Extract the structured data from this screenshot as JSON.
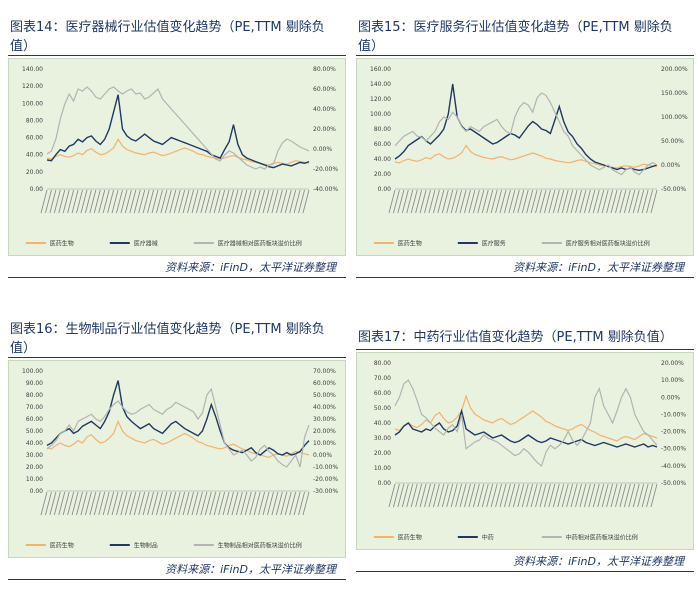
{
  "chart_data": [
    {
      "type": "line",
      "title": "图表14：医疗器械行业估值变化趋势（PE,TTM 剔除负值）",
      "source": "资料来源：iFinD，太平洋证券整理",
      "yticks_left": [
        "140.00",
        "120.00",
        "100.00",
        "80.00",
        "60.00",
        "40.00",
        "20.00",
        "0.00"
      ],
      "yticks_right": [
        "80.00%",
        "60.00%",
        "40.00%",
        "20.00%",
        "0.00%",
        "-20.00%",
        "-40.00%"
      ],
      "ylim": [
        0,
        140
      ],
      "y2lim": [
        -40,
        80
      ],
      "series": [
        {
          "name": "医药生物",
          "color": "#f4b26b",
          "axis": "left",
          "values": [
            36,
            35,
            38,
            40,
            38,
            37,
            39,
            42,
            40,
            45,
            47,
            43,
            40,
            41,
            44,
            48,
            58,
            50,
            46,
            44,
            42,
            41,
            40,
            42,
            43,
            41,
            39,
            40,
            42,
            44,
            46,
            48,
            46,
            44,
            41,
            40,
            38,
            37,
            36,
            35,
            36,
            38,
            39,
            37,
            35,
            34,
            32,
            31,
            30,
            29,
            28,
            30,
            31,
            30,
            29,
            31,
            33,
            32,
            31,
            30
          ]
        },
        {
          "name": "医疗器械",
          "color": "#1f3864",
          "axis": "left",
          "values": [
            34,
            33,
            40,
            46,
            44,
            50,
            52,
            58,
            55,
            60,
            62,
            56,
            52,
            58,
            70,
            90,
            110,
            70,
            62,
            58,
            56,
            60,
            64,
            60,
            56,
            54,
            52,
            56,
            60,
            58,
            56,
            54,
            52,
            50,
            48,
            46,
            44,
            40,
            38,
            36,
            46,
            55,
            75,
            52,
            40,
            36,
            34,
            32,
            30,
            28,
            26,
            25,
            27,
            29,
            28,
            27,
            29,
            31,
            30,
            32
          ]
        },
        {
          "name": "医疗器械相对医药板块溢价比例",
          "color": "#b3b3b3",
          "axis": "right",
          "values": [
            -5,
            -2,
            10,
            30,
            45,
            55,
            48,
            60,
            58,
            62,
            58,
            52,
            50,
            55,
            60,
            62,
            58,
            55,
            58,
            60,
            55,
            56,
            50,
            52,
            56,
            60,
            50,
            45,
            40,
            35,
            30,
            25,
            20,
            15,
            10,
            5,
            0,
            -5,
            -10,
            -12,
            -6,
            -2,
            -4,
            -8,
            -12,
            -16,
            -18,
            -20,
            -18,
            -20,
            -16,
            -15,
            -2,
            6,
            10,
            8,
            5,
            2,
            0,
            -2
          ]
        }
      ]
    },
    {
      "type": "line",
      "title": "图表15：医疗服务行业估值变化趋势（PE,TTM 剔除负值）",
      "source": "资料来源：iFinD，太平洋证券整理",
      "yticks_left": [
        "160.00",
        "140.00",
        "120.00",
        "100.00",
        "80.00",
        "60.00",
        "40.00",
        "20.00",
        "0.00"
      ],
      "yticks_right": [
        "200.00%",
        "150.00%",
        "100.00%",
        "50.00%",
        "0.00%",
        "-50.00%"
      ],
      "ylim": [
        0,
        160
      ],
      "y2lim": [
        -50,
        200
      ],
      "series": [
        {
          "name": "医药生物",
          "color": "#f4b26b",
          "axis": "left",
          "values": [
            36,
            35,
            38,
            40,
            38,
            37,
            39,
            42,
            40,
            45,
            47,
            43,
            40,
            41,
            44,
            48,
            58,
            50,
            46,
            44,
            42,
            41,
            40,
            42,
            43,
            41,
            39,
            40,
            42,
            44,
            46,
            48,
            46,
            44,
            41,
            40,
            38,
            37,
            36,
            35,
            36,
            38,
            39,
            37,
            35,
            34,
            32,
            31,
            30,
            29,
            28,
            30,
            31,
            30,
            29,
            31,
            33,
            32,
            31,
            30
          ]
        },
        {
          "name": "医疗服务",
          "color": "#1f3864",
          "axis": "left",
          "values": [
            40,
            44,
            50,
            58,
            62,
            66,
            70,
            64,
            60,
            66,
            72,
            80,
            100,
            140,
            96,
            84,
            78,
            80,
            76,
            72,
            68,
            64,
            60,
            62,
            66,
            70,
            74,
            72,
            68,
            76,
            84,
            90,
            86,
            80,
            78,
            74,
            92,
            110,
            90,
            76,
            70,
            60,
            54,
            46,
            40,
            36,
            34,
            32,
            30,
            28,
            26,
            28,
            26,
            28,
            26,
            25,
            26,
            28,
            30,
            32
          ]
        },
        {
          "name": "医疗服务相对医药板块溢价比例",
          "color": "#b3b3b3",
          "axis": "right",
          "values": [
            40,
            50,
            60,
            65,
            70,
            60,
            58,
            50,
            60,
            70,
            90,
            100,
            95,
            110,
            100,
            80,
            70,
            80,
            75,
            70,
            80,
            85,
            90,
            95,
            80,
            70,
            65,
            100,
            120,
            130,
            125,
            110,
            140,
            150,
            145,
            130,
            110,
            90,
            70,
            60,
            40,
            30,
            20,
            10,
            0,
            -5,
            -10,
            -5,
            0,
            -10,
            -15,
            -20,
            -10,
            -5,
            -15,
            -20,
            -10,
            0,
            5,
            0
          ]
        }
      ]
    },
    {
      "type": "line",
      "title": "图表16：生物制品行业估值变化趋势（PE,TTM 剔除负值）",
      "source": "资料来源：iFinD，太平洋证券整理",
      "yticks_left": [
        "100.00",
        "90.00",
        "80.00",
        "70.00",
        "60.00",
        "50.00",
        "40.00",
        "30.00",
        "20.00",
        "10.00",
        "0.00"
      ],
      "yticks_right": [
        "70.00%",
        "60.00%",
        "50.00%",
        "40.00%",
        "30.00%",
        "20.00%",
        "10.00%",
        "0.00%",
        "-10.00%",
        "-20.00%",
        "-30.00%"
      ],
      "ylim": [
        0,
        100
      ],
      "y2lim": [
        -30,
        70
      ],
      "series": [
        {
          "name": "医药生物",
          "color": "#f4b26b",
          "axis": "left",
          "values": [
            36,
            35,
            38,
            40,
            38,
            37,
            39,
            42,
            40,
            45,
            47,
            43,
            40,
            41,
            44,
            48,
            58,
            50,
            46,
            44,
            42,
            41,
            40,
            42,
            43,
            41,
            39,
            40,
            42,
            44,
            46,
            48,
            46,
            44,
            41,
            40,
            38,
            37,
            36,
            35,
            36,
            38,
            39,
            37,
            35,
            34,
            32,
            31,
            30,
            29,
            28,
            30,
            31,
            30,
            29,
            31,
            33,
            32,
            31,
            30
          ]
        },
        {
          "name": "生物制品",
          "color": "#1f3864",
          "axis": "left",
          "values": [
            38,
            40,
            44,
            48,
            50,
            52,
            48,
            50,
            54,
            56,
            58,
            55,
            52,
            58,
            66,
            80,
            92,
            70,
            62,
            58,
            55,
            52,
            54,
            56,
            52,
            50,
            48,
            52,
            56,
            58,
            55,
            52,
            50,
            48,
            46,
            50,
            60,
            72,
            62,
            50,
            40,
            36,
            34,
            33,
            32,
            34,
            36,
            32,
            30,
            33,
            36,
            34,
            31,
            30,
            32,
            30,
            31,
            33,
            38,
            42
          ]
        },
        {
          "name": "生物制品相对医药板块溢价比例",
          "color": "#b3b3b3",
          "axis": "right",
          "values": [
            5,
            8,
            12,
            18,
            20,
            25,
            20,
            28,
            30,
            32,
            34,
            30,
            28,
            32,
            38,
            42,
            45,
            40,
            36,
            34,
            35,
            38,
            40,
            42,
            38,
            36,
            34,
            38,
            40,
            44,
            42,
            40,
            38,
            36,
            30,
            35,
            50,
            55,
            40,
            25,
            10,
            5,
            0,
            2,
            4,
            0,
            -5,
            -2,
            5,
            8,
            3,
            0,
            -5,
            -8,
            -10,
            -5,
            0,
            -10,
            15,
            25
          ]
        }
      ]
    },
    {
      "type": "line",
      "title": "图表17：中药行业估值变化趋势（PE,TTM 剔除负值）",
      "source": "资料来源：iFinD，太平洋证券整理",
      "yticks_left": [
        "80.00",
        "70.00",
        "60.00",
        "50.00",
        "40.00",
        "30.00",
        "20.00",
        "10.00",
        "0.00"
      ],
      "yticks_right": [
        "20.00%",
        "10.00%",
        "0.00%",
        "-10.00%",
        "-20.00%",
        "-30.00%",
        "-40.00%",
        "-50.00%"
      ],
      "ylim": [
        0,
        80
      ],
      "y2lim": [
        -50,
        20
      ],
      "series": [
        {
          "name": "医药生物",
          "color": "#f4b26b",
          "axis": "left",
          "values": [
            36,
            35,
            38,
            40,
            38,
            37,
            39,
            42,
            40,
            45,
            47,
            43,
            40,
            41,
            44,
            48,
            58,
            50,
            46,
            44,
            42,
            41,
            40,
            42,
            43,
            41,
            39,
            40,
            42,
            44,
            46,
            48,
            46,
            44,
            41,
            40,
            38,
            37,
            36,
            35,
            36,
            38,
            39,
            37,
            35,
            34,
            32,
            31,
            30,
            29,
            28,
            30,
            31,
            30,
            29,
            31,
            33,
            32,
            31,
            30
          ]
        },
        {
          "name": "中药",
          "color": "#1f3864",
          "axis": "left",
          "values": [
            32,
            34,
            38,
            40,
            36,
            35,
            34,
            36,
            35,
            38,
            40,
            36,
            34,
            35,
            38,
            48,
            36,
            34,
            32,
            33,
            34,
            32,
            30,
            31,
            32,
            30,
            28,
            27,
            28,
            30,
            32,
            30,
            28,
            27,
            28,
            30,
            29,
            28,
            27,
            26,
            27,
            28,
            29,
            27,
            26,
            25,
            26,
            27,
            26,
            25,
            24,
            25,
            26,
            25,
            24,
            25,
            26,
            24,
            25,
            24
          ]
        },
        {
          "name": "中药相对医药板块溢价比例",
          "color": "#b3b3b3",
          "axis": "right",
          "values": [
            -5,
            0,
            8,
            10,
            5,
            -2,
            -10,
            -12,
            -15,
            -18,
            -20,
            -22,
            -18,
            -16,
            -20,
            -10,
            -30,
            -28,
            -26,
            -25,
            -22,
            -24,
            -25,
            -26,
            -28,
            -30,
            -32,
            -34,
            -33,
            -30,
            -32,
            -35,
            -38,
            -40,
            -32,
            -28,
            -30,
            -28,
            -25,
            -20,
            -25,
            -28,
            -25,
            -20,
            -15,
            0,
            5,
            -5,
            -10,
            -15,
            -8,
            0,
            5,
            0,
            -10,
            -15,
            -20,
            -22,
            -25,
            -28
          ]
        }
      ]
    }
  ]
}
